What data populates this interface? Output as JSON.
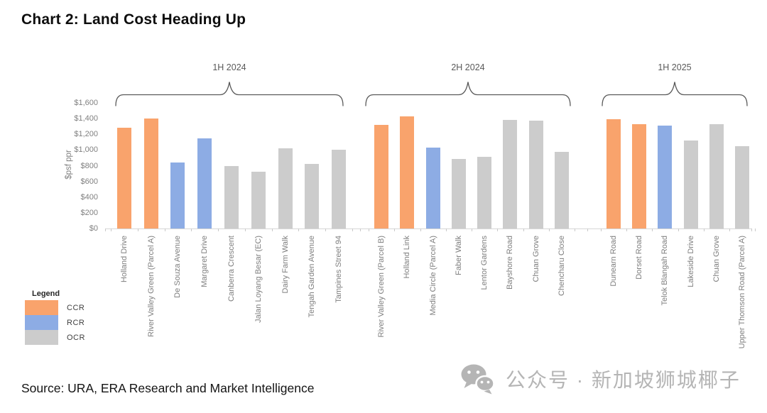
{
  "source": "Source: URA, ERA Research and Market Intelligence",
  "watermark": {
    "icon": "wechat-icon",
    "text": "公众号 · 新加坡狮城椰子"
  },
  "legend": {
    "title": "Legend",
    "items": [
      {
        "label": "CCR",
        "color": "#F9A36C"
      },
      {
        "label": "RCR",
        "color": "#8DACE4"
      },
      {
        "label": "OCR",
        "color": "#CCCCCC"
      }
    ]
  },
  "chart_data": {
    "type": "bar",
    "title": "Chart 2: Land Cost Heading Up",
    "xlabel": "",
    "ylabel": "$psf ppr",
    "ylim": [
      0,
      1600
    ],
    "ytick_step": 200,
    "ytick_labels": [
      "$0",
      "$200",
      "$400",
      "$600",
      "$800",
      "$1,000",
      "$1,200",
      "$1,400",
      "$1,600"
    ],
    "grid": false,
    "legend_position": "bottom-left",
    "region_colors": {
      "CCR": "#F9A36C",
      "RCR": "#8DACE4",
      "OCR": "#CCCCCC"
    },
    "groups": [
      {
        "period": "1H 2024",
        "bars": [
          {
            "category": "Holland Drive",
            "region": "CCR",
            "value": 1285
          },
          {
            "category": "River Valley Green (Parcel A)",
            "region": "CCR",
            "value": 1405
          },
          {
            "category": "De Souza Avenue",
            "region": "RCR",
            "value": 840
          },
          {
            "category": "Margaret Drive",
            "region": "RCR",
            "value": 1150
          },
          {
            "category": "Canberra Crescent",
            "region": "OCR",
            "value": 795
          },
          {
            "category": "Jalan Loyang Besar (EC)",
            "region": "OCR",
            "value": 720
          },
          {
            "category": "Dairy Farm Walk",
            "region": "OCR",
            "value": 1020
          },
          {
            "category": "Tengah Garden Avenue",
            "region": "OCR",
            "value": 820
          },
          {
            "category": "Tampines Street 94",
            "region": "OCR",
            "value": 1000
          }
        ]
      },
      {
        "period": "2H 2024",
        "bars": [
          {
            "category": "River Valley Green (Parcel B)",
            "region": "CCR",
            "value": 1320
          },
          {
            "category": "Holland Link",
            "region": "CCR",
            "value": 1430
          },
          {
            "category": "Media Circle (Parcel A)",
            "region": "RCR",
            "value": 1035
          },
          {
            "category": "Faber Walk",
            "region": "OCR",
            "value": 890
          },
          {
            "category": "Lentor Gardens",
            "region": "OCR",
            "value": 910
          },
          {
            "category": "Bayshore Road",
            "region": "OCR",
            "value": 1385
          },
          {
            "category": "Chuan Grove",
            "region": "OCR",
            "value": 1370
          },
          {
            "category": "Chencharu Close",
            "region": "OCR",
            "value": 975
          }
        ]
      },
      {
        "period": "1H 2025",
        "bars": [
          {
            "category": "Dunearn Road",
            "region": "CCR",
            "value": 1395
          },
          {
            "category": "Dorset Road",
            "region": "CCR",
            "value": 1330
          },
          {
            "category": "Telok Blangah Road",
            "region": "RCR",
            "value": 1315
          },
          {
            "category": "Lakeside Drive",
            "region": "OCR",
            "value": 1125
          },
          {
            "category": "Chuan Grove",
            "region": "OCR",
            "value": 1325
          },
          {
            "category": "Upper Thomson Road (Parcel A)",
            "region": "OCR",
            "value": 1050
          }
        ]
      }
    ]
  }
}
